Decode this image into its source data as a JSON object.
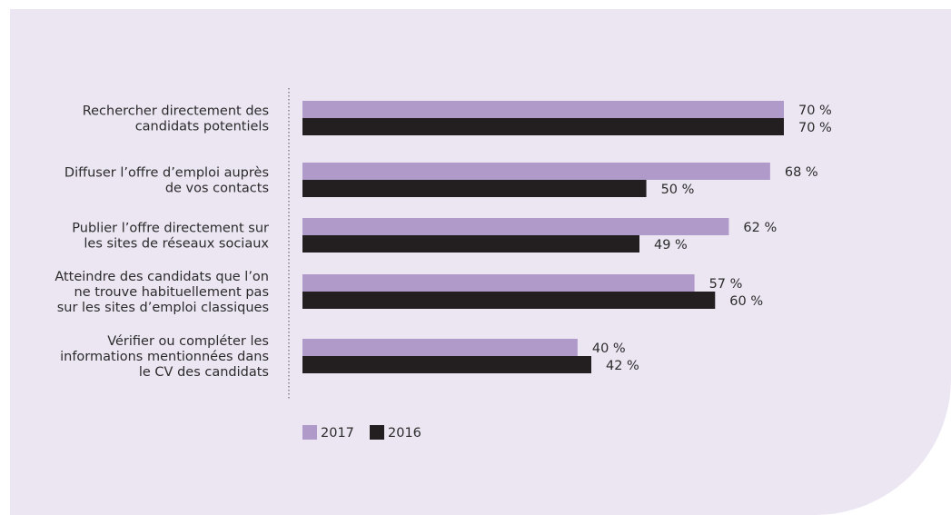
{
  "chart_data": {
    "type": "bar",
    "orientation": "horizontal",
    "categories": [
      [
        "Rechercher directement des",
        "candidats potentiels"
      ],
      [
        "Diffuser l’offre d’emploi auprès",
        "de vos contacts"
      ],
      [
        "Publier l’offre directement sur",
        "les sites de réseaux sociaux"
      ],
      [
        "Atteindre des candidats que l’on",
        "ne trouve habituellement pas",
        "sur les sites d’emploi classiques"
      ],
      [
        "Vérifier ou compléter les",
        "informations mentionnées dans",
        "le CV des candidats"
      ]
    ],
    "series": [
      {
        "name": "2017",
        "color": "#b09ac9",
        "values": [
          70,
          68,
          62,
          57,
          40
        ]
      },
      {
        "name": "2016",
        "color": "#231f20",
        "values": [
          70,
          50,
          49,
          60,
          42
        ]
      }
    ],
    "value_suffix": " %",
    "xlim": [
      0,
      100
    ],
    "grid": false,
    "legend": "bottom-left"
  },
  "legend": {
    "items": [
      {
        "label": "2017",
        "color": "#b09ac9"
      },
      {
        "label": "2016",
        "color": "#231f20"
      }
    ]
  },
  "colors": {
    "background": "#ece6f3",
    "axis": "#555555"
  }
}
